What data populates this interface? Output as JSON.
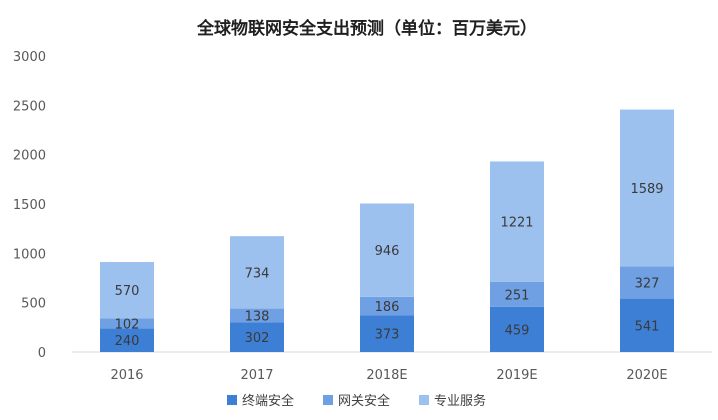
{
  "chart_data": {
    "type": "bar",
    "stacked": true,
    "title": "全球物联网安全支出预测（单位：百万美元）",
    "categories": [
      "2016",
      "2017",
      "2018E",
      "2019E",
      "2020E"
    ],
    "series": [
      {
        "name": "终端安全",
        "color": "#3e7fd6",
        "values": [
          240,
          302,
          373,
          459,
          541
        ]
      },
      {
        "name": "网关安全",
        "color": "#6fa0e3",
        "values": [
          102,
          138,
          186,
          251,
          327
        ]
      },
      {
        "name": "专业服务",
        "color": "#9cc1ef",
        "values": [
          570,
          734,
          946,
          1221,
          1589
        ]
      }
    ],
    "ylim": [
      0,
      3000
    ],
    "yticks": [
      0,
      500,
      1000,
      1500,
      2000,
      2500,
      3000
    ],
    "grid": false,
    "legend_position": "bottom"
  }
}
